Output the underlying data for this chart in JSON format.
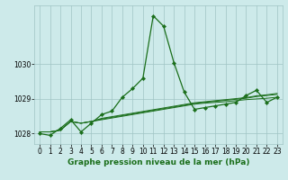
{
  "x": [
    0,
    1,
    2,
    3,
    4,
    5,
    6,
    7,
    8,
    9,
    10,
    11,
    12,
    13,
    14,
    15,
    16,
    17,
    18,
    19,
    20,
    21,
    22,
    23
  ],
  "series_main": [
    1028.0,
    1027.95,
    1028.15,
    1028.4,
    1028.05,
    1028.3,
    1028.55,
    1028.65,
    1029.05,
    1029.3,
    1029.6,
    1031.4,
    1031.1,
    1030.05,
    1029.2,
    1028.7,
    1028.75,
    1028.8,
    1028.85,
    1028.9,
    1029.1,
    1029.25,
    1028.9,
    1029.05
  ],
  "series_t1": [
    1028.05,
    1028.05,
    1028.1,
    1028.35,
    1028.3,
    1028.35,
    1028.4,
    1028.45,
    1028.5,
    1028.55,
    1028.6,
    1028.65,
    1028.7,
    1028.75,
    1028.8,
    1028.85,
    1028.88,
    1028.9,
    1028.92,
    1028.95,
    1028.98,
    1029.0,
    1029.02,
    1029.05
  ],
  "series_t2": [
    1028.05,
    1028.05,
    1028.1,
    1028.35,
    1028.3,
    1028.35,
    1028.42,
    1028.47,
    1028.52,
    1028.57,
    1028.62,
    1028.67,
    1028.72,
    1028.77,
    1028.82,
    1028.87,
    1028.9,
    1028.93,
    1028.96,
    1028.99,
    1029.02,
    1029.07,
    1029.1,
    1029.13
  ],
  "series_t3": [
    1028.05,
    1028.05,
    1028.1,
    1028.35,
    1028.3,
    1028.35,
    1028.44,
    1028.49,
    1028.54,
    1028.59,
    1028.64,
    1028.69,
    1028.74,
    1028.79,
    1028.84,
    1028.89,
    1028.92,
    1028.95,
    1028.98,
    1029.01,
    1029.04,
    1029.09,
    1029.12,
    1029.16
  ],
  "ylim": [
    1027.7,
    1031.7
  ],
  "yticks": [
    1028,
    1029,
    1030
  ],
  "xticks": [
    0,
    1,
    2,
    3,
    4,
    5,
    6,
    7,
    8,
    9,
    10,
    11,
    12,
    13,
    14,
    15,
    16,
    17,
    18,
    19,
    20,
    21,
    22,
    23
  ],
  "xlabel": "Graphe pression niveau de la mer (hPa)",
  "line_color": "#1a6e1a",
  "bg_color": "#cdeaea",
  "grid_color": "#a0c4c4",
  "xlabel_fontsize": 6.5,
  "tick_fontsize": 5.5
}
